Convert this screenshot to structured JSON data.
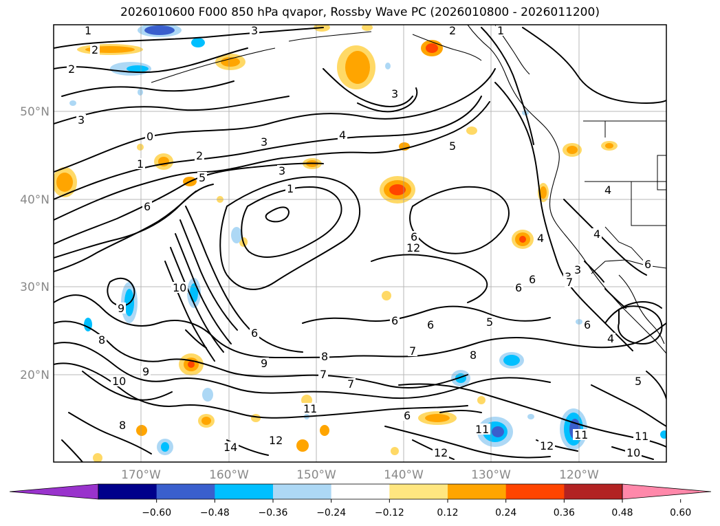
{
  "title": "2026010600 F000 850 hPa qvapor, Rossby Wave PC (2026010800 - 2026011200)",
  "latitude_labels": [
    "50°N",
    "40°N",
    "30°N",
    "20°N"
  ],
  "longitude_labels": [
    "170°W",
    "160°W",
    "150°W",
    "140°W",
    "130°W",
    "120°W"
  ],
  "colorbar": {
    "colors": [
      "#9933cc",
      "#00008b",
      "#3a5fcd",
      "#00bfff",
      "#add8f5",
      "#ffffff",
      "#ffe680",
      "#ffa500",
      "#ff4500",
      "#b22222",
      "#ff88aa"
    ],
    "tick_labels": [
      "−0.60",
      "−0.48",
      "−0.36",
      "−0.24",
      "−0.12",
      "0.12",
      "0.24",
      "0.36",
      "0.48",
      "0.60"
    ]
  },
  "contour_labels": [
    "1",
    "1",
    "2",
    "2",
    "2",
    "3",
    "3",
    "3",
    "4",
    "5",
    "5",
    "6",
    "6",
    "6",
    "6",
    "0",
    "1",
    "2",
    "3",
    "1",
    "3",
    "4",
    "4",
    "4",
    "3",
    "6",
    "6",
    "10",
    "9",
    "8",
    "6",
    "9",
    "10",
    "8",
    "7",
    "7",
    "7",
    "8",
    "5",
    "6",
    "11",
    "12",
    "14",
    "12",
    "12",
    "11",
    "11",
    "10",
    "5",
    "4",
    "8",
    "9",
    "3",
    "6",
    "7",
    "6",
    "12",
    "11"
  ]
}
